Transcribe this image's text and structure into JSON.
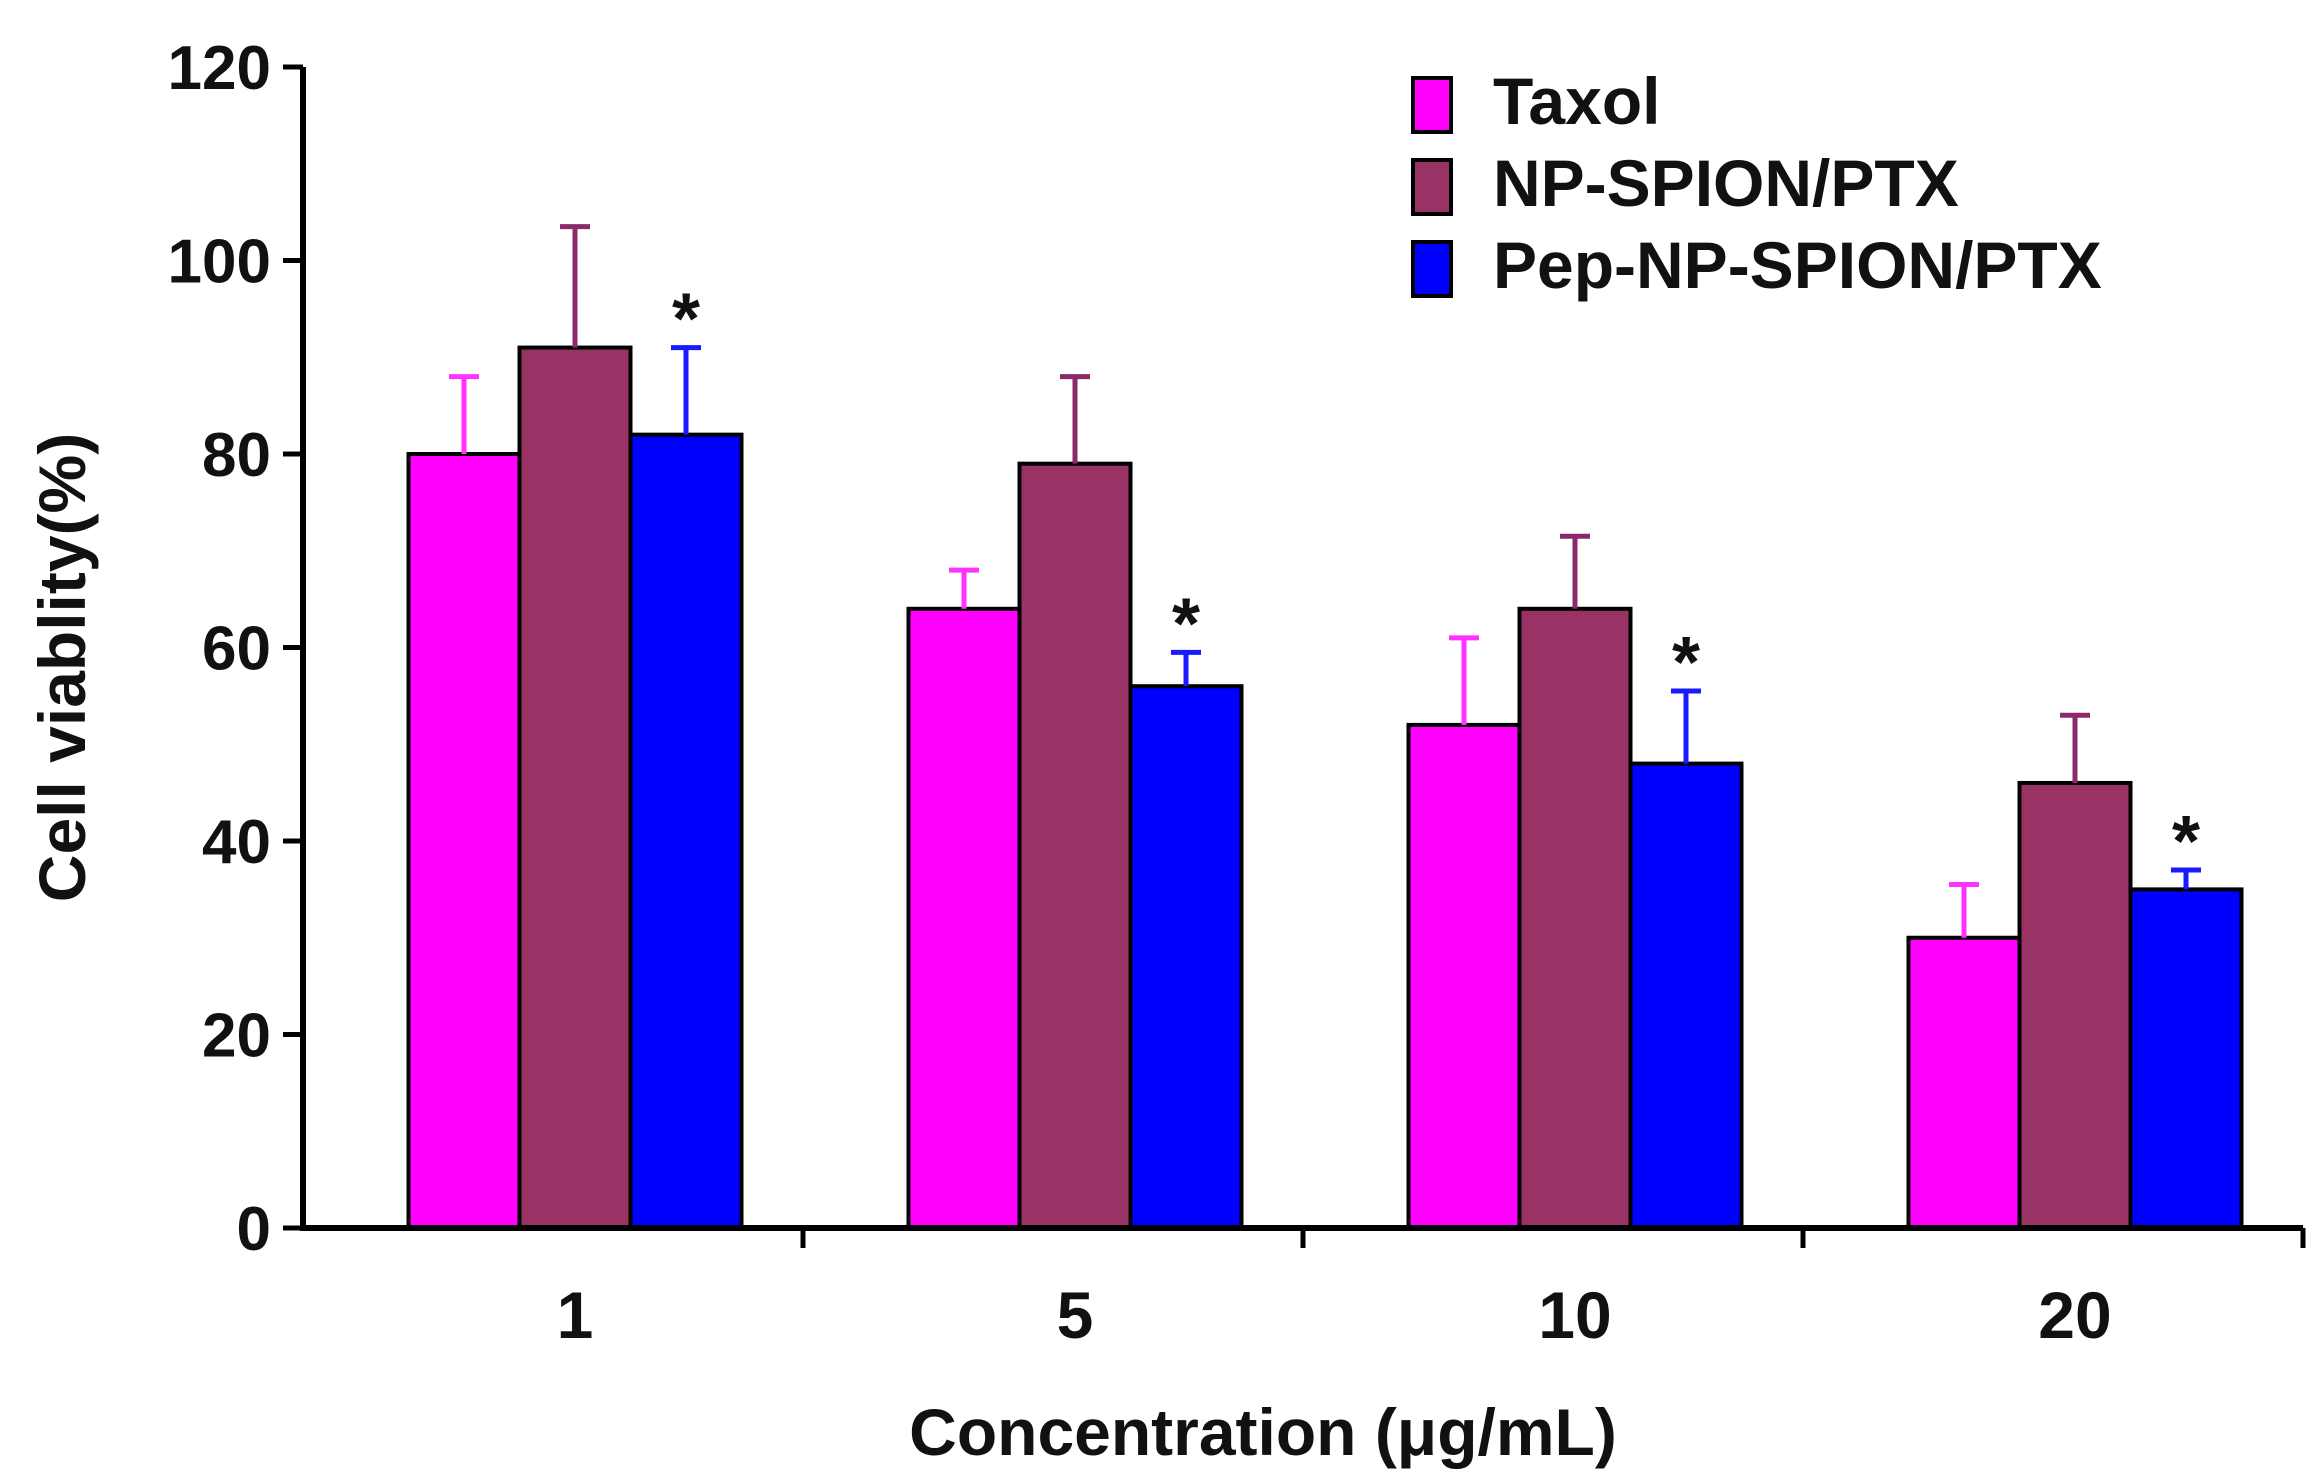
{
  "chart_data": {
    "type": "bar",
    "title": "",
    "xlabel": "Concentration (μg/mL)",
    "ylabel": "Cell viablity(%)",
    "ylim": [
      0,
      120
    ],
    "yticks": [
      0,
      20,
      40,
      60,
      80,
      100,
      120
    ],
    "yticklabels": [
      "0",
      "20",
      "40",
      "60",
      "80",
      "100",
      "120"
    ],
    "categories": [
      "1",
      "5",
      "10",
      "20"
    ],
    "series": [
      {
        "name": "Taxol",
        "color": "#ff00ff",
        "errcolor": "#ff33ff",
        "values": [
          80,
          64,
          52,
          30
        ],
        "errors": [
          8,
          4,
          9,
          5.5
        ]
      },
      {
        "name": "NP-SPION/PTX",
        "color": "#993366",
        "errcolor": "#8a2a6a",
        "values": [
          91,
          79,
          64,
          46
        ],
        "errors": [
          12.5,
          9,
          7.5,
          7
        ]
      },
      {
        "name": "Pep-NP-SPION/PTX",
        "color": "#0000ff",
        "errcolor": "#1a1aff",
        "values": [
          82,
          56,
          48,
          35
        ],
        "errors": [
          9,
          3.5,
          7.5,
          2
        ]
      }
    ],
    "annotations": [
      {
        "text": "*",
        "category": "1",
        "series": "Pep-NP-SPION/PTX"
      },
      {
        "text": "*",
        "category": "5",
        "series": "Pep-NP-SPION/PTX"
      },
      {
        "text": "*",
        "category": "10",
        "series": "Pep-NP-SPION/PTX"
      },
      {
        "text": "*",
        "category": "20",
        "series": "Pep-NP-SPION/PTX"
      }
    ],
    "legend_position": "top-right",
    "grid": false
  }
}
